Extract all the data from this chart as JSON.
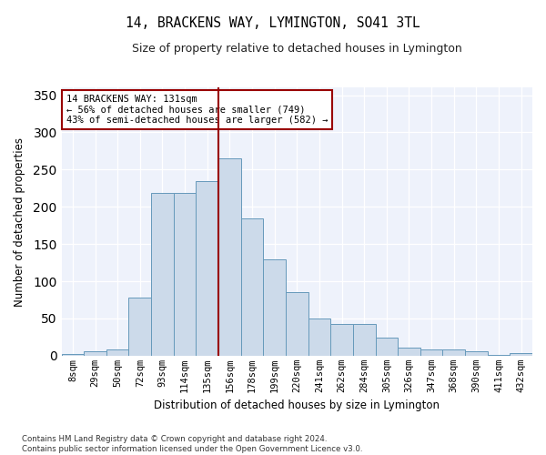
{
  "title": "14, BRACKENS WAY, LYMINGTON, SO41 3TL",
  "subtitle": "Size of property relative to detached houses in Lymington",
  "xlabel": "Distribution of detached houses by size in Lymington",
  "ylabel": "Number of detached properties",
  "categories": [
    "8sqm",
    "29sqm",
    "50sqm",
    "72sqm",
    "93sqm",
    "114sqm",
    "135sqm",
    "156sqm",
    "178sqm",
    "199sqm",
    "220sqm",
    "241sqm",
    "262sqm",
    "284sqm",
    "305sqm",
    "326sqm",
    "347sqm",
    "368sqm",
    "390sqm",
    "411sqm",
    "432sqm"
  ],
  "values": [
    2,
    6,
    8,
    78,
    219,
    219,
    234,
    265,
    184,
    130,
    85,
    50,
    43,
    43,
    24,
    11,
    8,
    8,
    6,
    1,
    4
  ],
  "bar_color": "#ccdaea",
  "bar_edge_color": "#6699bb",
  "vline_color": "#990000",
  "vline_x_idx": 7,
  "annotation_text": "14 BRACKENS WAY: 131sqm\n← 56% of detached houses are smaller (749)\n43% of semi-detached houses are larger (582) →",
  "annotation_box_facecolor": "#ffffff",
  "annotation_box_edgecolor": "#990000",
  "bg_color": "#eef2fb",
  "grid_color": "#ffffff",
  "footer": "Contains HM Land Registry data © Crown copyright and database right 2024.\nContains public sector information licensed under the Open Government Licence v3.0.",
  "ylim": [
    0,
    360
  ],
  "yticks": [
    0,
    50,
    100,
    150,
    200,
    250,
    300,
    350
  ]
}
